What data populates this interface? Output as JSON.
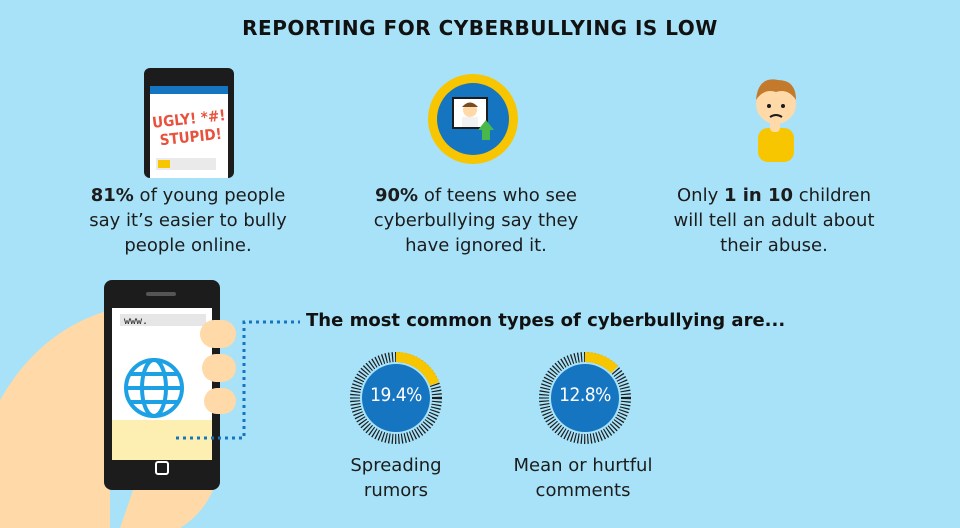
{
  "title": "REPORTING FOR CYBERBULLYING IS LOW",
  "stats": [
    {
      "highlight": "81%",
      "text_a": " of young people",
      "text_b": "say it’s easier to bully",
      "text_c": "people online."
    },
    {
      "highlight": "90%",
      "text_a": " of teens who see",
      "text_b": "cyberbullying say they",
      "text_c": "have ignored it."
    },
    {
      "prefix": "Only ",
      "highlight": "1 in 10",
      "text_a": " children",
      "text_b": "will tell an adult about",
      "text_c": "their abuse."
    }
  ],
  "phone_message": {
    "line1": "UGLY! *#!",
    "line2": "STUPID!"
  },
  "browser_url": "www.",
  "subtitle": "The most common types of cyberbullying are...",
  "donuts": [
    {
      "value": "19.4%",
      "fraction": 0.194,
      "label_a": "Spreading",
      "label_b": "rumors"
    },
    {
      "value": "12.8%",
      "fraction": 0.128,
      "label_a": "Mean or hurtful",
      "label_b": "comments"
    }
  ],
  "colors": {
    "background": "#a8e2f8",
    "blue": "#1675c0",
    "yellow": "#f7c600",
    "skin": "#ffd9a8",
    "dark": "#1c1c1c"
  }
}
